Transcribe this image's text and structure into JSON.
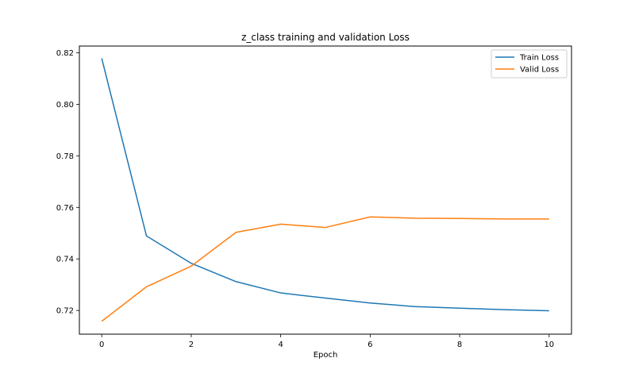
{
  "chart_data": {
    "type": "line",
    "title": "z_class training and validation Loss",
    "xlabel": "Epoch",
    "ylabel": "",
    "x": [
      0,
      1,
      2,
      3,
      4,
      5,
      6,
      7,
      8,
      9,
      10
    ],
    "xlim": [
      -0.5,
      10.5
    ],
    "ylim": [
      0.7108,
      0.8226
    ],
    "xticks": [
      0,
      2,
      4,
      6,
      8,
      10
    ],
    "yticks": [
      0.72,
      0.74,
      0.76,
      0.78,
      0.8,
      0.82
    ],
    "xtick_labels": [
      "0",
      "2",
      "4",
      "6",
      "8",
      "10"
    ],
    "ytick_labels": [
      "0.72",
      "0.74",
      "0.76",
      "0.78",
      "0.80",
      "0.82"
    ],
    "grid": false,
    "legend_position": "top-right",
    "series": [
      {
        "name": "Train Loss",
        "color": "#1f77b4",
        "values": [
          0.8178,
          0.7489,
          0.7383,
          0.7312,
          0.7268,
          0.7248,
          0.7229,
          0.7215,
          0.7209,
          0.7203,
          0.7199
        ]
      },
      {
        "name": "Valid Loss",
        "color": "#ff7f0e",
        "values": [
          0.7158,
          0.7292,
          0.7372,
          0.7503,
          0.7535,
          0.7522,
          0.7563,
          0.7558,
          0.7557,
          0.7555,
          0.7555
        ]
      }
    ]
  }
}
